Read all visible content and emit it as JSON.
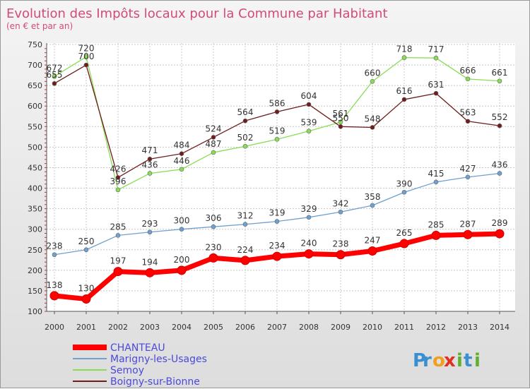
{
  "chart_data": {
    "type": "line",
    "title": "Evolution des Impôts locaux pour la Commune par Habitant",
    "subtitle": "(en € et par an)",
    "xlabel": "",
    "ylabel": "",
    "x": [
      "2000",
      "2001",
      "2002",
      "2003",
      "2004",
      "2005",
      "2006",
      "2007",
      "2008",
      "2009",
      "2010",
      "2011",
      "2012",
      "2013",
      "2014"
    ],
    "ylim": [
      100,
      750
    ],
    "yticks": [
      100,
      150,
      200,
      250,
      300,
      350,
      400,
      450,
      500,
      550,
      600,
      650,
      700,
      750
    ],
    "grid": true,
    "legend_position": "bottom-left",
    "series": [
      {
        "name": "CHANTEAU",
        "color": "#ff0000",
        "emphasis": true,
        "values": [
          138,
          130,
          197,
          194,
          200,
          230,
          224,
          234,
          240,
          238,
          247,
          265,
          285,
          287,
          289
        ]
      },
      {
        "name": "Marigny-les-Usages",
        "color": "#6fa0d0",
        "emphasis": false,
        "values": [
          238,
          250,
          285,
          293,
          300,
          306,
          312,
          319,
          329,
          342,
          358,
          390,
          415,
          427,
          436
        ]
      },
      {
        "name": "Semoy",
        "color": "#88dd55",
        "emphasis": false,
        "values": [
          672,
          720,
          396,
          436,
          446,
          487,
          502,
          519,
          539,
          561,
          660,
          718,
          717,
          666,
          661
        ]
      },
      {
        "name": "Boigny-sur-Bionne",
        "color": "#6e1c1c",
        "emphasis": false,
        "values": [
          655,
          700,
          426,
          471,
          484,
          524,
          564,
          586,
          604,
          550,
          548,
          616,
          631,
          563,
          552
        ]
      }
    ]
  },
  "logo": {
    "letters": [
      "P",
      "r",
      "o",
      "x",
      "i",
      "t",
      "i"
    ],
    "colors": [
      "#3a8fd0",
      "#3a8fd0",
      "#f0a020",
      "#e03020",
      "#60b030",
      "#3a8fd0",
      "#60b030"
    ]
  }
}
